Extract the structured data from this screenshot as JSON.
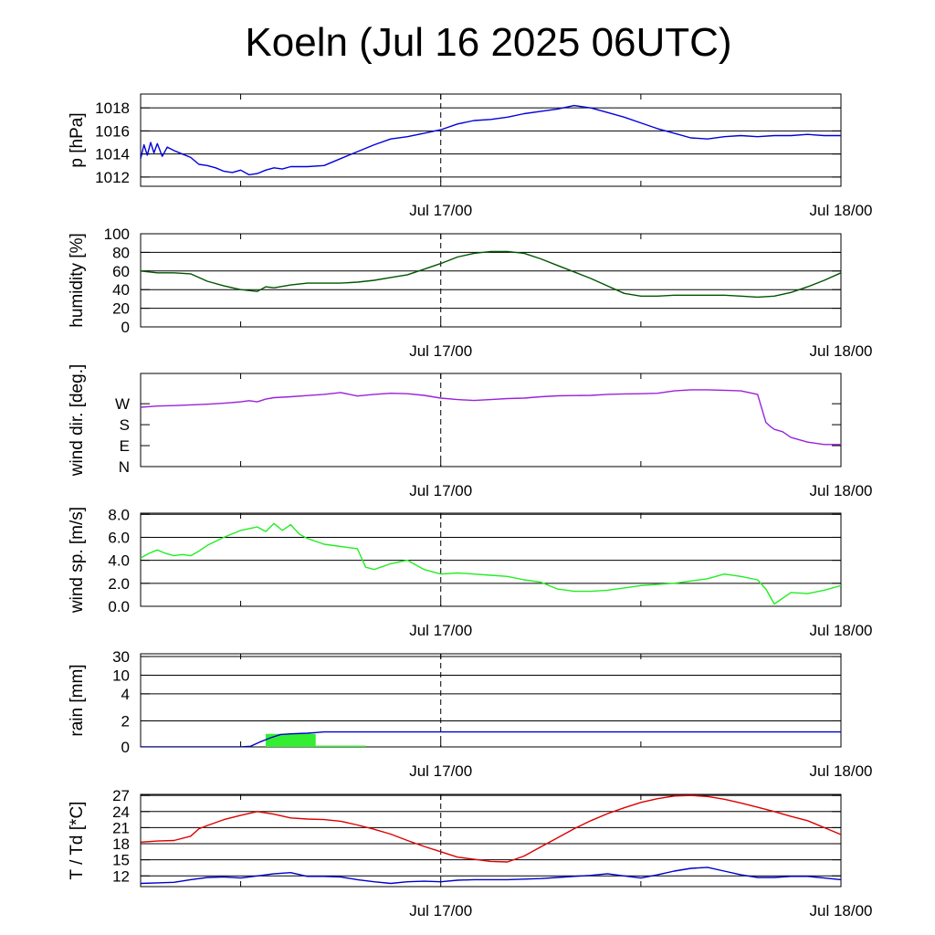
{
  "title": "Koeln (Jul 16 2025 06UTC)",
  "time_axis": {
    "start": "Jul 16 06UTC",
    "end": "Jul 18 00UTC",
    "tick_labels": [
      {
        "label": "Jul 17/00",
        "hours": 18
      },
      {
        "label": "Jul 18/00",
        "hours": 42
      }
    ],
    "minor_ticks_hours": [
      6,
      18,
      30,
      42
    ],
    "dashed_marker_hours": 18
  },
  "chart_data": [
    {
      "type": "line",
      "panel": "pressure",
      "ylabel": "p [hPa]",
      "ylim": [
        1011.2,
        1019.2
      ],
      "yticks": [
        1012,
        1014,
        1016,
        1018
      ],
      "ytick_labels": [
        "1012",
        "1014",
        "1016",
        "1018"
      ],
      "series": [
        {
          "color": "#0000dd",
          "x": [
            0,
            0.2,
            0.4,
            0.6,
            0.8,
            1.0,
            1.3,
            1.6,
            2.0,
            2.5,
            3,
            3.5,
            4,
            4.5,
            5,
            5.5,
            6,
            6.5,
            7,
            7.5,
            8,
            8.5,
            9,
            10,
            11,
            12,
            13,
            14,
            15,
            16,
            17,
            18,
            19,
            20,
            21,
            22,
            23,
            24,
            25,
            26,
            27,
            28,
            29,
            30,
            31,
            32,
            33,
            34,
            35,
            36,
            37,
            38,
            39,
            40,
            41,
            42
          ],
          "y": [
            1013.6,
            1014.8,
            1013.9,
            1015.0,
            1014.1,
            1014.9,
            1013.8,
            1014.6,
            1014.3,
            1014.0,
            1013.7,
            1013.1,
            1013.0,
            1012.8,
            1012.5,
            1012.4,
            1012.6,
            1012.2,
            1012.3,
            1012.6,
            1012.8,
            1012.7,
            1012.9,
            1012.9,
            1013.0,
            1013.6,
            1014.2,
            1014.8,
            1015.3,
            1015.5,
            1015.8,
            1016.1,
            1016.6,
            1016.9,
            1017.0,
            1017.2,
            1017.5,
            1017.7,
            1017.9,
            1018.2,
            1018.0,
            1017.6,
            1017.2,
            1016.7,
            1016.2,
            1015.8,
            1015.4,
            1015.3,
            1015.5,
            1015.6,
            1015.5,
            1015.6,
            1015.6,
            1015.7,
            1015.6,
            1015.6
          ]
        }
      ]
    },
    {
      "type": "line",
      "panel": "humidity",
      "ylabel": "humidity [%]",
      "ylim": [
        0,
        100
      ],
      "yticks": [
        0,
        20,
        40,
        60,
        80,
        100
      ],
      "ytick_labels": [
        "0",
        "20",
        "40",
        "60",
        "80",
        "100"
      ],
      "series": [
        {
          "color": "#005500",
          "x": [
            0,
            1,
            2,
            3,
            4,
            5,
            6,
            7,
            7.5,
            8,
            9,
            10,
            11,
            12,
            13,
            14,
            15,
            16,
            17,
            18,
            19,
            20,
            21,
            22,
            23,
            24,
            25,
            26,
            27,
            28,
            29,
            30,
            31,
            32,
            33,
            34,
            35,
            36,
            37,
            38,
            39,
            40,
            41,
            42
          ],
          "y": [
            60,
            58,
            58,
            57,
            49,
            44,
            40,
            38,
            43,
            42,
            45,
            47,
            47,
            47,
            48,
            50,
            53,
            56,
            62,
            68,
            75,
            79,
            81,
            81,
            79,
            73,
            66,
            59,
            52,
            44,
            36,
            33,
            33,
            34,
            34,
            34,
            34,
            33,
            32,
            33,
            37,
            43,
            50,
            58
          ]
        }
      ]
    },
    {
      "type": "line",
      "panel": "wind_direction",
      "ylabel": "wind dir. [deg.]",
      "ylim": [
        0,
        400
      ],
      "yticks": [
        0,
        90,
        180,
        270
      ],
      "ytick_labels": [
        "N",
        "E",
        "S",
        "W"
      ],
      "series": [
        {
          "color": "#9922dd",
          "x": [
            0,
            1,
            2,
            3,
            4,
            5,
            6,
            6.5,
            7,
            7.5,
            8,
            9,
            10,
            11,
            12,
            13,
            14,
            15,
            16,
            17,
            18,
            19,
            20,
            21,
            22,
            23,
            24,
            25,
            26,
            27,
            28,
            29,
            30,
            31,
            32,
            33,
            34,
            35,
            36,
            37,
            37.5,
            37.8,
            38,
            38.5,
            39,
            40,
            41,
            42
          ],
          "y": [
            255,
            260,
            262,
            265,
            268,
            272,
            278,
            283,
            278,
            290,
            296,
            300,
            305,
            310,
            318,
            303,
            310,
            315,
            313,
            306,
            294,
            288,
            284,
            288,
            292,
            294,
            300,
            304,
            305,
            306,
            310,
            312,
            313,
            315,
            325,
            330,
            330,
            328,
            325,
            310,
            190,
            170,
            160,
            150,
            125,
            105,
            95,
            95
          ]
        }
      ]
    },
    {
      "type": "line",
      "panel": "wind_speed",
      "ylabel": "wind sp. [m/s]",
      "ylim": [
        0,
        8.1
      ],
      "yticks": [
        0,
        2,
        4,
        6,
        8
      ],
      "ytick_labels": [
        "0.0",
        "2.0",
        "4.0",
        "6.0",
        "8.0"
      ],
      "series": [
        {
          "color": "#22ee22",
          "x": [
            0,
            0.5,
            1,
            1.5,
            2,
            2.5,
            3,
            3.5,
            4,
            5,
            6,
            7,
            7.5,
            8,
            8.5,
            9,
            9.5,
            10,
            11,
            12,
            13,
            13.5,
            14,
            15,
            16,
            17,
            18,
            19,
            20,
            21,
            22,
            23,
            24,
            25,
            26,
            27,
            28,
            29,
            30,
            31,
            32,
            33,
            34,
            35,
            36,
            37,
            37.5,
            38,
            39,
            40,
            41,
            42
          ],
          "y": [
            4.2,
            4.6,
            4.9,
            4.6,
            4.4,
            4.5,
            4.4,
            4.8,
            5.3,
            6.0,
            6.6,
            6.9,
            6.5,
            7.2,
            6.6,
            7.1,
            6.3,
            5.9,
            5.4,
            5.2,
            5.0,
            3.4,
            3.2,
            3.7,
            4.0,
            3.2,
            2.8,
            2.9,
            2.8,
            2.7,
            2.6,
            2.3,
            2.1,
            1.5,
            1.3,
            1.3,
            1.4,
            1.6,
            1.8,
            1.9,
            2.0,
            2.2,
            2.4,
            2.8,
            2.6,
            2.3,
            1.5,
            0.2,
            1.2,
            1.1,
            1.4,
            1.8
          ]
        }
      ]
    },
    {
      "type": "bar",
      "panel": "rain",
      "ylabel": "rain [mm]",
      "ylim": [
        0,
        34
      ],
      "yticks": [
        0,
        2,
        4,
        10,
        30
      ],
      "ytick_labels": [
        "0",
        "2",
        "4",
        "10",
        "30"
      ],
      "bars": {
        "color": "#33ee33",
        "x_start": [
          7.5,
          10.5
        ],
        "x_end": [
          10.5,
          13.5
        ],
        "values": [
          1.0,
          0.1
        ]
      },
      "series": [
        {
          "color": "#0000cc",
          "x": [
            0,
            6,
            6.6,
            7.2,
            7.8,
            8.4,
            9,
            10,
            10.5,
            11,
            42
          ],
          "y": [
            0,
            0,
            0.05,
            0.4,
            0.7,
            0.95,
            1.0,
            1.05,
            1.1,
            1.15,
            1.15
          ]
        }
      ]
    },
    {
      "type": "line",
      "panel": "temperature",
      "ylabel": "T / Td [*C]",
      "ylim": [
        10,
        27.2
      ],
      "yticks": [
        12,
        15,
        18,
        21,
        24,
        27
      ],
      "ytick_labels": [
        "12",
        "15",
        "18",
        "21",
        "24",
        "27"
      ],
      "series": [
        {
          "color": "#dd0000",
          "x": [
            0,
            1,
            2,
            3,
            3.5,
            4,
            5,
            6,
            7,
            8,
            9,
            10,
            11,
            12,
            13,
            14,
            15,
            16,
            17,
            18,
            19,
            20,
            21,
            22,
            23,
            24,
            25,
            26,
            27,
            28,
            29,
            30,
            31,
            32,
            33,
            34,
            35,
            36,
            37,
            38,
            39,
            40,
            41,
            42
          ],
          "y": [
            18.3,
            18.5,
            18.6,
            19.4,
            20.8,
            21.4,
            22.5,
            23.3,
            24.0,
            23.5,
            22.8,
            22.6,
            22.5,
            22.2,
            21.5,
            20.7,
            19.8,
            18.6,
            17.5,
            16.5,
            15.5,
            15.1,
            14.7,
            14.6,
            15.7,
            17.4,
            19.1,
            20.8,
            22.3,
            23.6,
            24.7,
            25.7,
            26.4,
            26.9,
            27.0,
            26.8,
            26.3,
            25.6,
            24.8,
            24.0,
            23.1,
            22.3,
            21.0,
            19.7
          ]
        },
        {
          "color": "#0000cc",
          "x": [
            0,
            1,
            2,
            3,
            4,
            5,
            6,
            7,
            8,
            9,
            10,
            11,
            12,
            13,
            14,
            15,
            16,
            17,
            18,
            19,
            20,
            21,
            22,
            23,
            24,
            25,
            26,
            27,
            28,
            29,
            30,
            31,
            32,
            33,
            34,
            35,
            36,
            37,
            38,
            39,
            40,
            41,
            42
          ],
          "y": [
            10.6,
            10.7,
            10.8,
            11.3,
            11.7,
            11.8,
            11.6,
            12.0,
            12.4,
            12.6,
            11.9,
            11.9,
            11.8,
            11.3,
            10.9,
            10.6,
            10.9,
            11.0,
            10.9,
            11.2,
            11.3,
            11.3,
            11.3,
            11.4,
            11.5,
            11.7,
            11.9,
            12.1,
            12.4,
            12.0,
            11.6,
            12.2,
            12.9,
            13.4,
            13.6,
            12.9,
            12.2,
            11.7,
            11.7,
            11.9,
            11.9,
            11.6,
            11.3
          ]
        }
      ]
    }
  ]
}
